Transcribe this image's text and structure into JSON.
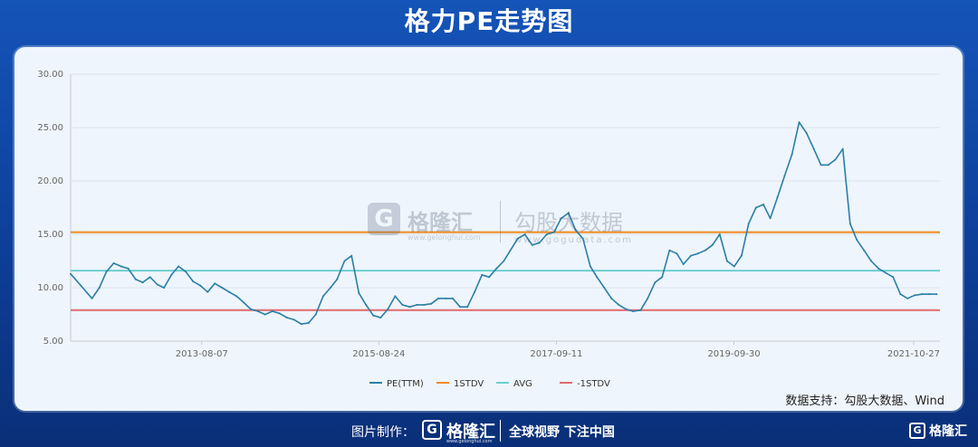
{
  "title": "格力PE走势图",
  "source_note": "数据支持：勾股大数据、Wind",
  "watermark": {
    "logo_letter": "G",
    "brand": "格隆汇",
    "brand_sub": "www.gelonghui.com",
    "product": "勾股大数据",
    "url": "www.gogudata.com"
  },
  "footer": {
    "made_by": "图片制作：",
    "logo_letter": "G",
    "brand": "格隆汇",
    "brand_sub": "www.gelonghui.com",
    "slogan": "全球视野 下注中国",
    "corner_brand": "格隆汇"
  },
  "colors": {
    "pe": "#2a7ea6",
    "stdv_plus": "#f08a1c",
    "avg": "#6fcfd0",
    "stdv_minus": "#e06a6a"
  },
  "chart_data": {
    "type": "line",
    "y_ticks": [
      "30.00",
      "25.00",
      "20.00",
      "15.00",
      "10.00",
      "5.00"
    ],
    "ylim": [
      5,
      30
    ],
    "x_ticks": [
      "2013-08-07",
      "2015-08-24",
      "2017-09-11",
      "2019-09-30",
      "2021-10-27"
    ],
    "x_tick_dates": [
      "2013-08-07",
      "2015-08-24",
      "2017-09-11",
      "2019-09-30",
      "2021-10-27"
    ],
    "x_range": [
      "2012-02-01",
      "2022-02-15"
    ],
    "legend": [
      "PE(TTM)",
      "1STDV",
      "AVG",
      "-1STDV"
    ],
    "reference_lines": {
      "1STDV": 15.2,
      "AVG": 11.6,
      "-1STDV": 7.9
    },
    "series": [
      {
        "name": "PE(TTM)",
        "x": [
          "2012-02-01",
          "2012-03-15",
          "2012-05-01",
          "2012-06-01",
          "2012-07-01",
          "2012-08-01",
          "2012-09-01",
          "2012-10-01",
          "2012-11-01",
          "2012-12-01",
          "2013-01-01",
          "2013-02-01",
          "2013-03-01",
          "2013-04-01",
          "2013-05-01",
          "2013-06-01",
          "2013-07-01",
          "2013-08-01",
          "2013-09-01",
          "2013-10-01",
          "2013-11-01",
          "2013-12-01",
          "2014-01-01",
          "2014-02-01",
          "2014-03-01",
          "2014-04-01",
          "2014-05-01",
          "2014-06-01",
          "2014-07-01",
          "2014-08-01",
          "2014-09-01",
          "2014-10-01",
          "2014-11-01",
          "2014-12-01",
          "2015-01-01",
          "2015-02-01",
          "2015-03-01",
          "2015-04-01",
          "2015-05-01",
          "2015-06-01",
          "2015-07-01",
          "2015-08-01",
          "2015-09-01",
          "2015-10-01",
          "2015-11-01",
          "2015-12-01",
          "2016-01-01",
          "2016-02-01",
          "2016-03-01",
          "2016-04-01",
          "2016-05-01",
          "2016-06-01",
          "2016-07-01",
          "2016-08-01",
          "2016-09-01",
          "2016-10-01",
          "2016-11-01",
          "2016-12-01",
          "2017-01-01",
          "2017-02-01",
          "2017-03-01",
          "2017-04-01",
          "2017-05-01",
          "2017-06-01",
          "2017-07-01",
          "2017-08-01",
          "2017-09-01",
          "2017-10-01",
          "2017-11-01",
          "2017-12-01",
          "2018-01-01",
          "2018-02-01",
          "2018-03-01",
          "2018-04-01",
          "2018-05-01",
          "2018-06-01",
          "2018-07-01",
          "2018-08-01",
          "2018-09-01",
          "2018-10-01",
          "2018-11-01",
          "2018-12-01",
          "2019-01-01",
          "2019-02-01",
          "2019-03-01",
          "2019-04-01",
          "2019-05-01",
          "2019-06-01",
          "2019-07-01",
          "2019-08-01",
          "2019-09-01",
          "2019-10-01",
          "2019-11-01",
          "2019-12-01",
          "2020-01-01",
          "2020-02-01",
          "2020-03-01",
          "2020-04-01",
          "2020-05-01",
          "2020-06-01",
          "2020-07-01",
          "2020-08-01",
          "2020-09-01",
          "2020-10-01",
          "2020-11-01",
          "2020-12-01",
          "2021-01-01",
          "2021-02-01",
          "2021-03-01",
          "2021-04-01",
          "2021-05-01",
          "2021-06-01",
          "2021-07-01",
          "2021-08-01",
          "2021-09-01",
          "2021-10-01",
          "2021-11-01",
          "2021-12-01",
          "2022-01-01",
          "2022-02-01"
        ],
        "y": [
          11.3,
          10.2,
          9.0,
          10.0,
          11.5,
          12.3,
          12.0,
          11.8,
          10.8,
          10.5,
          11.0,
          10.3,
          10.0,
          11.2,
          12.0,
          11.5,
          10.6,
          10.2,
          9.6,
          10.4,
          10.0,
          9.6,
          9.2,
          8.6,
          8.0,
          7.8,
          7.5,
          7.8,
          7.6,
          7.2,
          7.0,
          6.6,
          6.7,
          7.5,
          9.2,
          10.0,
          10.8,
          12.5,
          13.0,
          9.5,
          8.4,
          7.4,
          7.2,
          8.0,
          9.2,
          8.4,
          8.2,
          8.4,
          8.4,
          8.5,
          9.0,
          9.0,
          9.0,
          8.2,
          8.2,
          9.6,
          11.2,
          11.0,
          11.8,
          12.5,
          13.5,
          14.6,
          15.0,
          14.0,
          14.2,
          15.0,
          15.2,
          16.5,
          17.0,
          15.4,
          14.6,
          12.0,
          11.0,
          10.0,
          9.0,
          8.4,
          8.0,
          7.8,
          7.9,
          9.0,
          10.5,
          11.0,
          13.5,
          13.2,
          12.2,
          13.0,
          13.2,
          13.5,
          14.0,
          15.0,
          12.5,
          12.0,
          13.0,
          16.0,
          17.5,
          17.8,
          16.5,
          18.5,
          20.5,
          22.5,
          25.5,
          24.5,
          23.0,
          21.5,
          21.5,
          22.0,
          23.0,
          16.0,
          14.5,
          13.5,
          12.5,
          11.8,
          11.4,
          11.0,
          9.4,
          9.0,
          9.3,
          9.4,
          9.4,
          9.4
        ]
      }
    ]
  }
}
